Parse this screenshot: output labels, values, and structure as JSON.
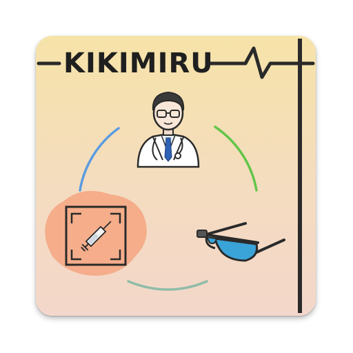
{
  "app": {
    "title": "KIKIMIRU"
  },
  "colors": {
    "background_top": "#f6e3a8",
    "background_bottom": "#f3d7ca",
    "line": "#2a2a2a",
    "arc_blue": "#5a9be0",
    "arc_green": "#62c54a",
    "arc_teal": "#7fb7a8",
    "blob": "#f5a480",
    "lens": "#3aa3d8",
    "tie": "#2f63b5"
  },
  "icons": [
    "doctor-icon",
    "syringe-scan-icon",
    "smart-glasses-icon",
    "heartbeat-line-icon"
  ]
}
